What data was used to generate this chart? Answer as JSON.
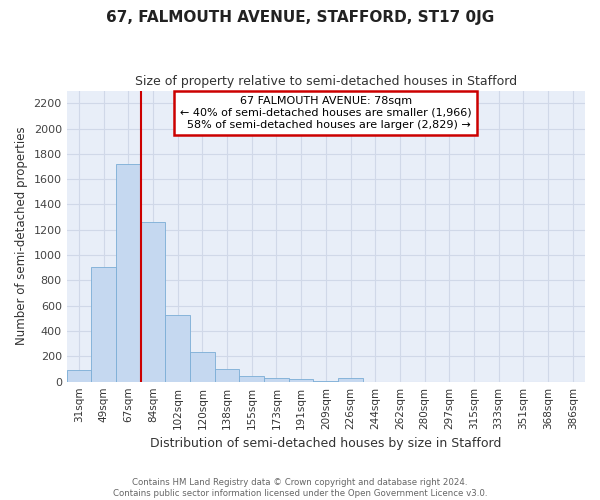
{
  "title": "67, FALMOUTH AVENUE, STAFFORD, ST17 0JG",
  "subtitle": "Size of property relative to semi-detached houses in Stafford",
  "xlabel": "Distribution of semi-detached houses by size in Stafford",
  "ylabel": "Number of semi-detached properties",
  "categories": [
    "31sqm",
    "49sqm",
    "67sqm",
    "84sqm",
    "102sqm",
    "120sqm",
    "138sqm",
    "155sqm",
    "173sqm",
    "191sqm",
    "209sqm",
    "226sqm",
    "244sqm",
    "262sqm",
    "280sqm",
    "297sqm",
    "315sqm",
    "333sqm",
    "351sqm",
    "368sqm",
    "386sqm"
  ],
  "values": [
    90,
    905,
    1720,
    1265,
    530,
    235,
    100,
    45,
    28,
    20,
    5,
    27,
    0,
    0,
    0,
    0,
    0,
    0,
    0,
    0,
    0
  ],
  "bar_color": "#c5d8f0",
  "bar_edge_color": "#7badd6",
  "property_label": "67 FALMOUTH AVENUE: 78sqm",
  "pct_smaller": 40,
  "pct_smaller_count": "1,966",
  "pct_larger": 58,
  "pct_larger_count": "2,829",
  "vline_x_index": 3,
  "vline_color": "#cc0000",
  "annotation_box_color": "#cc0000",
  "ylim": [
    0,
    2300
  ],
  "yticks": [
    0,
    200,
    400,
    600,
    800,
    1000,
    1200,
    1400,
    1600,
    1800,
    2000,
    2200
  ],
  "grid_color": "#d0d8e8",
  "bg_color": "#e8eef8",
  "footer_line1": "Contains HM Land Registry data © Crown copyright and database right 2024.",
  "footer_line2": "Contains public sector information licensed under the Open Government Licence v3.0."
}
